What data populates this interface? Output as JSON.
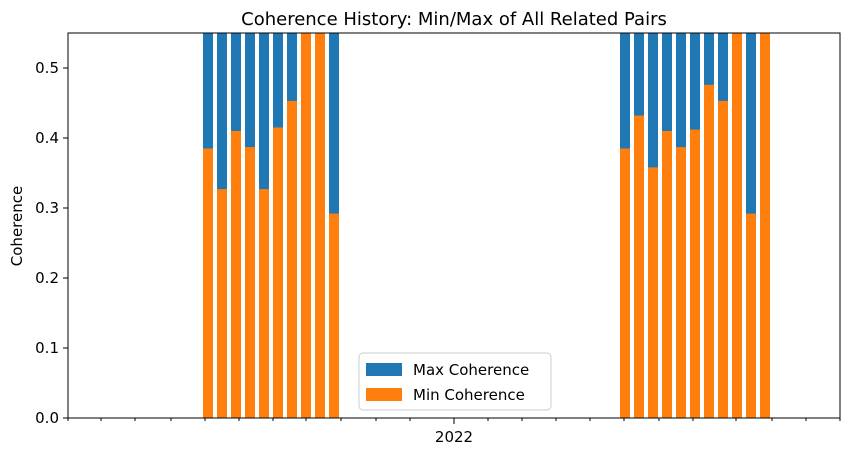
{
  "chart_data": {
    "type": "bar",
    "title": "Coherence History: Min/Max of All Related Pairs",
    "xlabel": "",
    "ylabel": "Coherence",
    "x_tick_label": "2022",
    "ylim": [
      0,
      0.55
    ],
    "yticks": [
      "0.0",
      "0.1",
      "0.2",
      "0.3",
      "0.4",
      "0.5"
    ],
    "grid": false,
    "legend_position": "lower-center",
    "colors": {
      "max": "#1f77b4",
      "min": "#ff7f0e"
    },
    "series": [
      {
        "name": "Max Coherence",
        "values": [
          0.55,
          0.55,
          0.55,
          0.55,
          0.55,
          0.55,
          0.55,
          0.55,
          0.55,
          0.55,
          0.55,
          0.55,
          0.55,
          0.55,
          0.55,
          0.55,
          0.55,
          0.55,
          0.55,
          0.55,
          0.55
        ]
      },
      {
        "name": "Min Coherence",
        "values": [
          0.385,
          0.327,
          0.41,
          0.387,
          0.327,
          0.415,
          0.453,
          0.55,
          0.55,
          0.292,
          0.385,
          0.432,
          0.358,
          0.41,
          0.387,
          0.412,
          0.476,
          0.453,
          0.55,
          0.292,
          0.55
        ]
      }
    ]
  }
}
